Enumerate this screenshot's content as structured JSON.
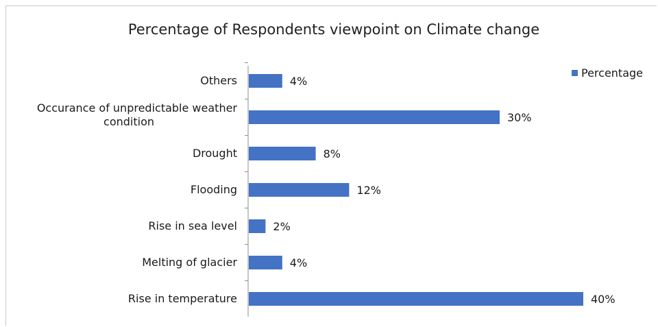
{
  "chart_data": {
    "type": "bar",
    "orientation": "horizontal",
    "title": "Percentage of Respondents viewpoint on Climate change",
    "categories": [
      "Others",
      "Occurance of unpredictable weather condition",
      "Drought",
      "Flooding",
      "Rise in sea level",
      "Melting of glacier",
      "Rise in temperature"
    ],
    "series": [
      {
        "name": "Percentage",
        "values": [
          4,
          30,
          8,
          12,
          2,
          4,
          40
        ],
        "labels": [
          "4%",
          "30%",
          "8%",
          "12%",
          "2%",
          "4%",
          "40%"
        ],
        "color": "#4472C4"
      }
    ],
    "xlim": [
      0,
      40
    ],
    "grid": false,
    "legend": "top-right"
  }
}
